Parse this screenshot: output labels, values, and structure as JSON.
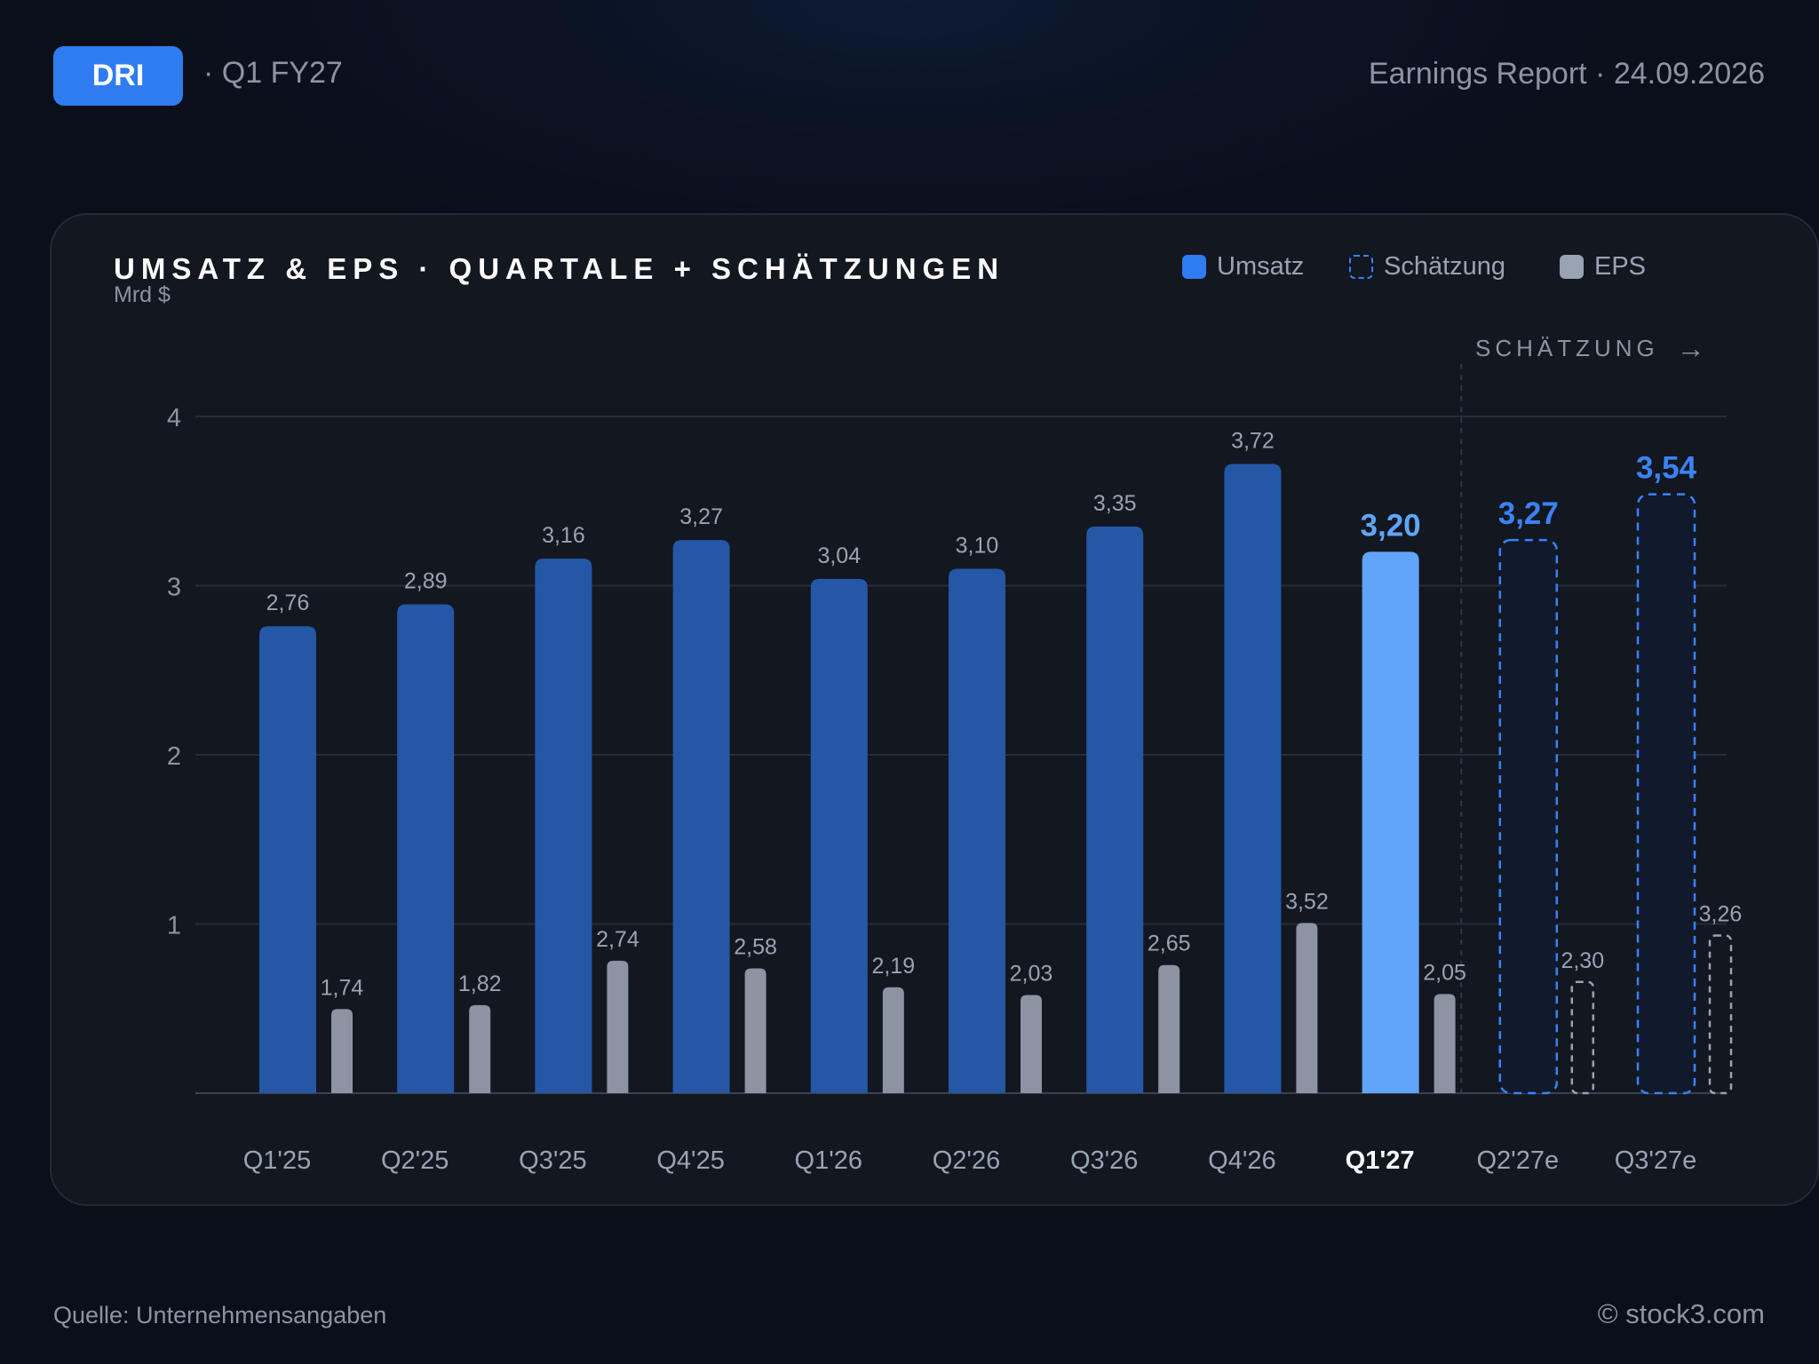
{
  "header": {
    "ticker": "DRI",
    "period": "· Q1 FY27",
    "report": "Earnings Report · 24.09.2026"
  },
  "legend": {
    "revenue": "Umsatz",
    "estimate": "Schätzung",
    "eps": "EPS"
  },
  "forecast_label": "SCHÄTZUNG",
  "forecast_arrow": "→",
  "footer": {
    "source": "Quelle: Unternehmensangaben",
    "copyright": "© stock3.com"
  },
  "colors": {
    "revenue": "#2457a6",
    "revenue_current": "#60a5fa",
    "estimate_stroke": "#3b82f6",
    "eps": "#8c94a3",
    "accent": "#2f7cf0"
  },
  "chart_data": {
    "type": "bar",
    "title": "UMSATZ & EPS · QUARTALE + SCHÄTZUNGEN",
    "ylabel": "Mrd $",
    "ylim": [
      0,
      4
    ],
    "yticks": [
      "1",
      "2",
      "3",
      "4"
    ],
    "grid": true,
    "legend_position": "top-right",
    "categories": [
      "Q1'25",
      "Q2'25",
      "Q3'25",
      "Q4'25",
      "Q1'26",
      "Q2'26",
      "Q3'26",
      "Q4'26",
      "Q1'27",
      "Q2'27e",
      "Q3'27e"
    ],
    "current_index": 8,
    "estimate_from_index": 9,
    "series": [
      {
        "name": "Umsatz",
        "values": [
          2.76,
          2.89,
          3.16,
          3.27,
          3.04,
          3.1,
          3.35,
          3.72,
          3.2,
          3.27,
          3.54
        ],
        "labels": [
          "2,76",
          "2,89",
          "3,16",
          "3,27",
          "3,04",
          "3,10",
          "3,35",
          "3,72",
          "3,20",
          "3,27",
          "3,54"
        ]
      },
      {
        "name": "EPS",
        "values": [
          1.74,
          1.82,
          2.74,
          2.58,
          2.19,
          2.03,
          2.65,
          3.52,
          2.05,
          2.3,
          3.26
        ],
        "labels": [
          "1,74",
          "1,82",
          "2,74",
          "2,58",
          "2,19",
          "2,03",
          "2,65",
          "3,52",
          "2,05",
          "2,30",
          "3,26"
        ]
      }
    ]
  }
}
